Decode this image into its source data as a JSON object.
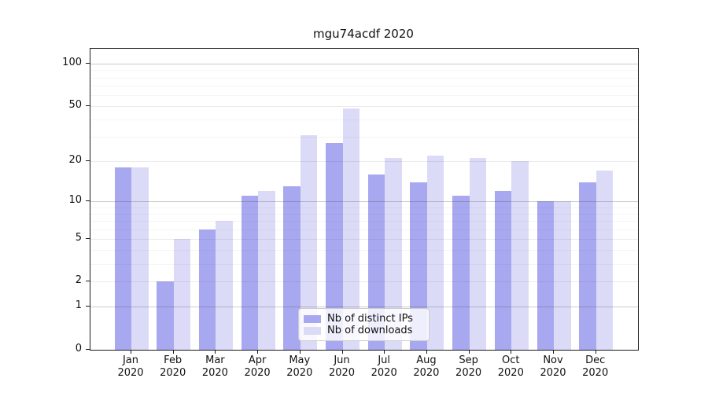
{
  "chart_data": {
    "type": "bar",
    "title": "mgu74acdf 2020",
    "categories": [
      "Jan",
      "Feb",
      "Mar",
      "Apr",
      "May",
      "Jun",
      "Jul",
      "Aug",
      "Sep",
      "Oct",
      "Nov",
      "Dec"
    ],
    "year": "2020",
    "series": [
      {
        "name": "Nb of distinct IPs",
        "color": "#a8a8f0",
        "values": [
          18,
          2,
          6,
          11,
          13,
          27,
          16,
          14,
          11,
          12,
          10,
          14
        ]
      },
      {
        "name": "Nb of downloads",
        "color": "#dbdbf8",
        "values": [
          18,
          5,
          7,
          12,
          31,
          48,
          21,
          22,
          21,
          20,
          10,
          17
        ]
      }
    ],
    "y_axis": {
      "scale": "log1p",
      "tick_labels": [
        "0",
        "1",
        "2",
        "5",
        "10",
        "20",
        "50",
        "100"
      ],
      "tick_values": [
        0,
        1,
        2,
        5,
        10,
        20,
        50,
        100
      ],
      "decade_gridlines": [
        1,
        10,
        100
      ],
      "mid_gridlines": [
        2,
        5,
        20,
        50
      ],
      "minor_gridlines": [
        3,
        4,
        6,
        7,
        8,
        9,
        30,
        40,
        60,
        70,
        80,
        90
      ],
      "ylim": [
        0,
        129
      ]
    },
    "legend": {
      "position": "bottom-center-inside"
    },
    "grid": "on",
    "background": "#ffffff"
  }
}
